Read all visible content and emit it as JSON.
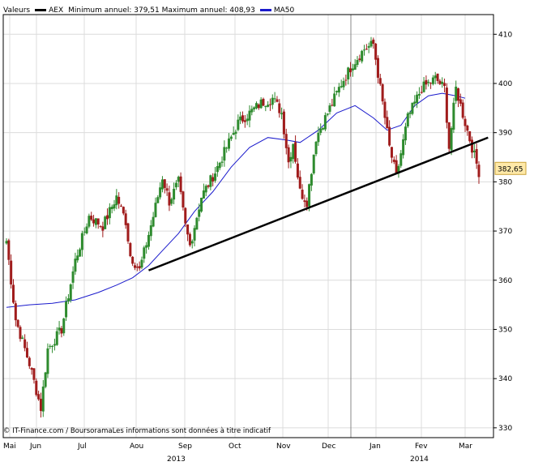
{
  "header": {
    "values_label": "Valeurs",
    "series_name": "AEX",
    "min_max_text": "Minimum annuel: 379,51 Maximum annuel: 408,93",
    "ma_name": "MA50"
  },
  "footer": {
    "credit": "© IT-Finance.com / BoursoramaLes informations sont données à titre indicatif"
  },
  "colors": {
    "up": "#2e8b2e",
    "down": "#a01c1c",
    "ma": "#1a1acc",
    "trend": "#000000",
    "last_price_box": "#ffe9a8",
    "grid": "#dcdcdc"
  },
  "chart_data": {
    "type": "candlestick",
    "x_labels": [
      "Mai",
      "Jun",
      "Jul",
      "Aou",
      "Sep",
      "Oct",
      "Nov",
      "Dec",
      "Jan",
      "Fev",
      "Mar"
    ],
    "year_labels": [
      "2013",
      "2014"
    ],
    "ylim": [
      328,
      414
    ],
    "y_ticks": [
      330,
      340,
      350,
      360,
      370,
      380,
      390,
      400,
      410
    ],
    "last_price": "382,65",
    "grid": true,
    "segments": [
      [
        0,
        368
      ],
      [
        4,
        352
      ],
      [
        10,
        343
      ],
      [
        15,
        334
      ],
      [
        18,
        346
      ],
      [
        24,
        350
      ],
      [
        30,
        364
      ],
      [
        36,
        373
      ],
      [
        42,
        371
      ],
      [
        48,
        377
      ],
      [
        52,
        372
      ],
      [
        54,
        365
      ],
      [
        58,
        362
      ],
      [
        64,
        373
      ],
      [
        68,
        381
      ],
      [
        71,
        376
      ],
      [
        75,
        380
      ],
      [
        78,
        371
      ],
      [
        80,
        367
      ],
      [
        85,
        377
      ],
      [
        91,
        382
      ],
      [
        96,
        387
      ],
      [
        101,
        392
      ],
      [
        106,
        394
      ],
      [
        111,
        396
      ],
      [
        116,
        397
      ],
      [
        120,
        394
      ],
      [
        123,
        384
      ],
      [
        125,
        388
      ],
      [
        128,
        378
      ],
      [
        131,
        376
      ],
      [
        135,
        389
      ],
      [
        141,
        395
      ],
      [
        146,
        400
      ],
      [
        151,
        404
      ],
      [
        156,
        407
      ],
      [
        160,
        408
      ],
      [
        164,
        396
      ],
      [
        167,
        387
      ],
      [
        170,
        381
      ],
      [
        175,
        393
      ],
      [
        181,
        399
      ],
      [
        187,
        401
      ],
      [
        191,
        399
      ],
      [
        193,
        387
      ],
      [
        196,
        399
      ],
      [
        200,
        392
      ],
      [
        203,
        387
      ],
      [
        206,
        382
      ]
    ],
    "ma50": [
      [
        0,
        354.5
      ],
      [
        10,
        355
      ],
      [
        20,
        355.3
      ],
      [
        30,
        356
      ],
      [
        40,
        357.5
      ],
      [
        48,
        359
      ],
      [
        55,
        360.5
      ],
      [
        62,
        363
      ],
      [
        68,
        366
      ],
      [
        75,
        369.5
      ],
      [
        82,
        374
      ],
      [
        90,
        378
      ],
      [
        98,
        383
      ],
      [
        106,
        387
      ],
      [
        114,
        389
      ],
      [
        122,
        388.5
      ],
      [
        128,
        388
      ],
      [
        136,
        390.5
      ],
      [
        144,
        394
      ],
      [
        152,
        395.5
      ],
      [
        160,
        393
      ],
      [
        166,
        390.5
      ],
      [
        172,
        391.5
      ],
      [
        178,
        395.5
      ],
      [
        184,
        397.5
      ],
      [
        190,
        398
      ],
      [
        196,
        397.5
      ],
      [
        200,
        397
      ]
    ],
    "trendline": [
      [
        62,
        362
      ],
      [
        210,
        389
      ]
    ]
  }
}
